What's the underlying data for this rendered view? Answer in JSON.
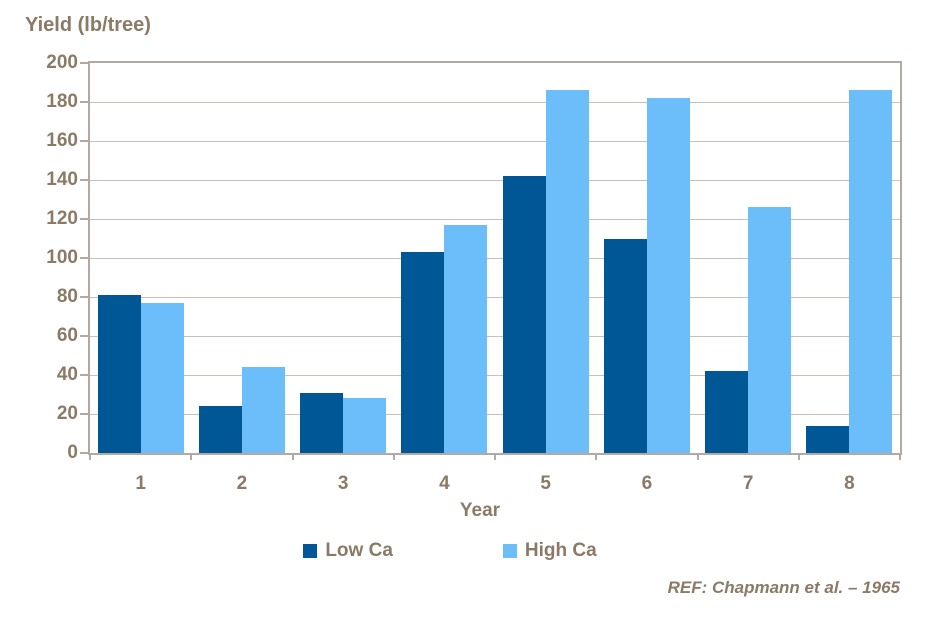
{
  "chart_data": {
    "type": "bar",
    "title": "Yield (lb/tree)",
    "xlabel": "Year",
    "ylabel": "Yield (lb/tree)",
    "categories": [
      "1",
      "2",
      "3",
      "4",
      "5",
      "6",
      "7",
      "8"
    ],
    "series": [
      {
        "name": "Low Ca",
        "color": "#005795",
        "values": [
          81,
          24,
          31,
          103,
          142,
          110,
          42,
          14
        ]
      },
      {
        "name": "High Ca",
        "color": "#6CBEFA",
        "values": [
          77,
          44,
          28,
          117,
          186,
          182,
          126,
          186
        ]
      }
    ],
    "ylim": [
      0,
      200
    ],
    "yticks": [
      0,
      20,
      40,
      60,
      80,
      100,
      120,
      140,
      160,
      180,
      200
    ],
    "grid": "horizontal",
    "legend_position": "bottom"
  },
  "citation": "REF: Chapmann et al. – 1965",
  "colors": {
    "text_brown": "#8A7A66",
    "gridline": "#C9C1B9",
    "axis_border": "#B2A9A0",
    "low_ca": "#005795",
    "high_ca": "#6CBEFA",
    "background": "#ffffff"
  }
}
